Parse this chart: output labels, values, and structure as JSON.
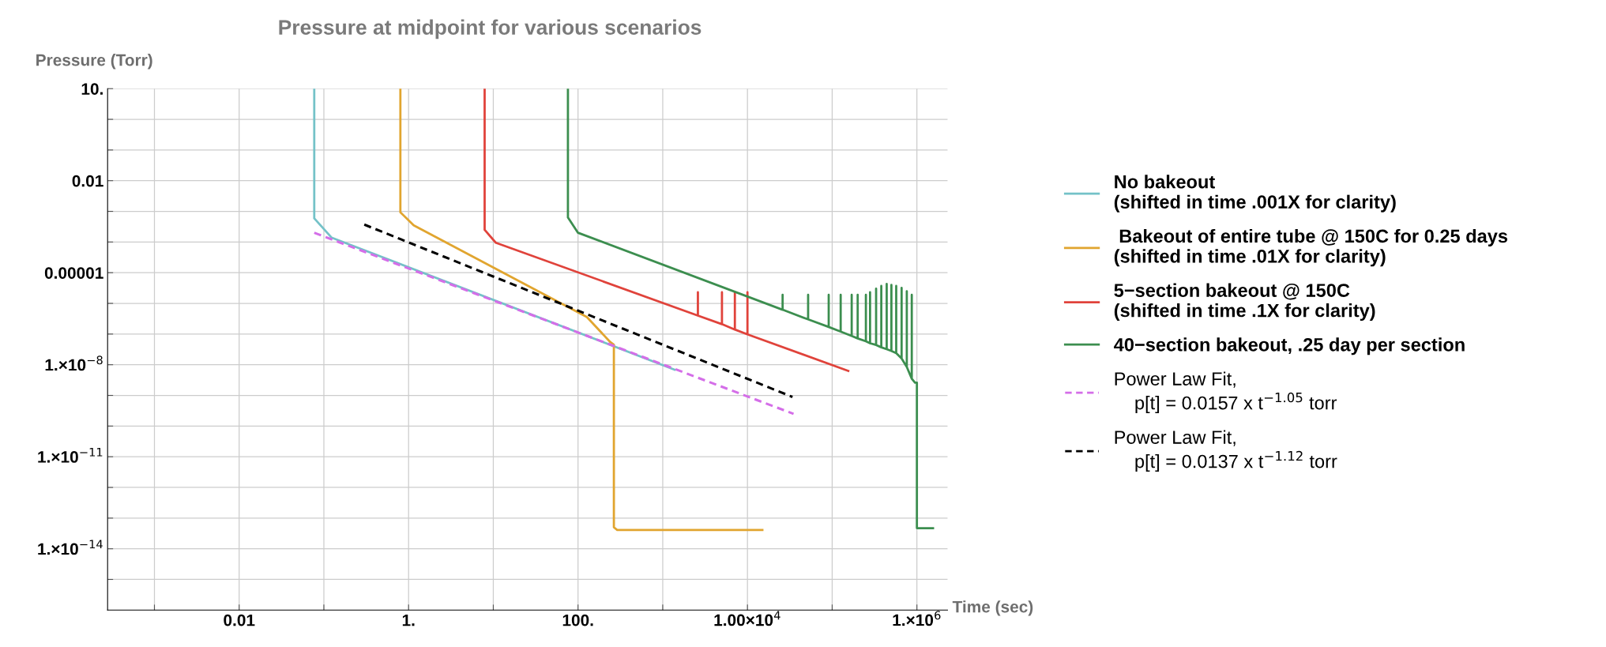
{
  "chart_data": {
    "type": "line",
    "title": "Pressure at midpoint for various scenarios",
    "xlabel": "Time (sec)",
    "ylabel": "Pressure (Torr)",
    "log": "xy",
    "grid": true,
    "legend": "right",
    "marker": "none",
    "xlim": [
      0.00028,
      2300000
    ],
    "ylim": [
      1e-16,
      10
    ],
    "xticks": [
      {
        "value": 0.001,
        "label": null
      },
      {
        "value": 0.01,
        "label": "0.01"
      },
      {
        "value": 0.1,
        "label": null
      },
      {
        "value": 1,
        "label": "1."
      },
      {
        "value": 10,
        "label": null
      },
      {
        "value": 100,
        "label": "100."
      },
      {
        "value": 1000,
        "label": null
      },
      {
        "value": 10000,
        "label": "1.00×10$^{4}$"
      },
      {
        "value": 100000,
        "label": null
      },
      {
        "value": 1000000,
        "label": "1.×10$^{6}$"
      }
    ],
    "yticks": [
      {
        "value": 1e-15,
        "label": null
      },
      {
        "value": 1e-14,
        "label": "1.×10$^{−14}$"
      },
      {
        "value": 1e-13,
        "label": null
      },
      {
        "value": 1e-12,
        "label": null
      },
      {
        "value": 1e-11,
        "label": "1.×10$^{−11}$"
      },
      {
        "value": 1e-10,
        "label": null
      },
      {
        "value": 1e-09,
        "label": null
      },
      {
        "value": 1e-08,
        "label": "1.×10$^{−8}$"
      },
      {
        "value": 1e-07,
        "label": null
      },
      {
        "value": 1e-06,
        "label": null
      },
      {
        "value": 1e-05,
        "label": "0.00001"
      },
      {
        "value": 0.0001,
        "label": null
      },
      {
        "value": 0.001,
        "label": null
      },
      {
        "value": 0.01,
        "label": "0.01"
      },
      {
        "value": 0.1,
        "label": null
      },
      {
        "value": 1,
        "label": null
      },
      {
        "value": 10,
        "label": "10."
      }
    ],
    "series": [
      {
        "name": "No bakeout\n(shifted in time .001X for clarity)",
        "color": "#74c2c8",
        "line_style": "solid",
        "x": [
          0.077,
          0.077,
          0.123,
          1380
        ],
        "values": [
          10,
          0.00059,
          0.00014,
          6.9e-09
        ]
      },
      {
        "name": " Bakeout of entire tube @ 150C for 0.25 days\n(shifted in time .01X for clarity)",
        "color": "#e1a52f",
        "line_style": "solid",
        "x": [
          0.8,
          0.8,
          1.15,
          127,
          240,
          265,
          265,
          290,
          15000
        ],
        "values": [
          10,
          0.00093,
          0.00035,
          3.6e-07,
          5.5e-08,
          4.5e-08,
          5e-14,
          4.1e-14,
          4.1e-14
        ]
      },
      {
        "name": "5−section bakeout @ 150C\n(shifted in time .1X for clarity)",
        "color": "#e0433b",
        "line_style": "solid",
        "x": [
          7.9,
          7.9,
          10.7,
          2600,
          2600,
          2600,
          5000,
          5000,
          5000,
          7100,
          7100,
          7100,
          10000,
          10000,
          10000,
          155000
        ],
        "values": [
          10,
          0.00025,
          9.5e-05,
          4e-07,
          2.3e-06,
          4e-07,
          2.1e-07,
          2.3e-06,
          2.1e-07,
          1.4e-07,
          2.3e-06,
          1.4e-07,
          9.8e-08,
          2.3e-06,
          9.8e-08,
          6.3e-09
        ]
      },
      {
        "name": "40−section bakeout, .25 day per section",
        "color": "#3c8e4f",
        "line_style": "solid",
        "x": [
          76,
          76,
          100,
          26000,
          26000,
          26000,
          52000,
          52000,
          52000,
          91000,
          91000,
          91000,
          126000,
          126000,
          126000,
          170000,
          170000,
          170000,
          200000,
          200000,
          200000,
          250000,
          250000,
          250000,
          280000,
          280000,
          280000,
          330000,
          330000,
          330000,
          380000,
          380000,
          380000,
          440000,
          440000,
          440000,
          500000,
          500000,
          500000,
          570000,
          570000,
          570000,
          660000,
          660000,
          660000,
          760000,
          760000,
          760000,
          870000,
          870000,
          870000,
          950000,
          1000000,
          1000000,
          1550000
        ],
        "values": [
          10,
          0.00063,
          0.0002,
          6.2e-07,
          1.9e-06,
          6.2e-07,
          3e-07,
          1.9e-06,
          3e-07,
          1.7e-07,
          1.9e-06,
          1.7e-07,
          1.2e-07,
          1.9e-06,
          1.2e-07,
          8.7e-08,
          1.9e-06,
          8.7e-08,
          7.2e-08,
          1.9e-06,
          7.2e-08,
          5.8e-08,
          1.9e-06,
          5.8e-08,
          5e-08,
          2.3e-06,
          5e-08,
          4.4e-08,
          3e-06,
          4.4e-08,
          3.7e-08,
          3.7e-06,
          3.7e-08,
          3.2e-08,
          4.3e-06,
          3.2e-08,
          2.8e-08,
          4e-06,
          2.8e-08,
          2.4e-08,
          3.7e-06,
          2.4e-08,
          1.6e-08,
          3.2e-06,
          1.6e-08,
          8.5e-09,
          2.5e-06,
          8.5e-09,
          3.5e-09,
          1.9e-06,
          3.5e-09,
          2.6e-09,
          2.6e-09,
          4.7e-14,
          4.7e-14
        ]
      },
      {
        "name": "Power Law Fit,\n    p[t] = 0.0157 x t$^{−1.05}$ torr",
        "color": "#d46ee8",
        "line_style": "dashed",
        "x": [
          0.077,
          35000
        ],
        "values": [
          0.0002,
          2.5e-10
        ]
      },
      {
        "name": "Power Law Fit,\n    p[t] = 0.0137 x t$^{−1.12}$ torr",
        "color": "#000000",
        "line_style": "dashed",
        "x": [
          0.3,
          34000
        ],
        "values": [
          0.00037,
          8.9e-10
        ]
      }
    ]
  }
}
